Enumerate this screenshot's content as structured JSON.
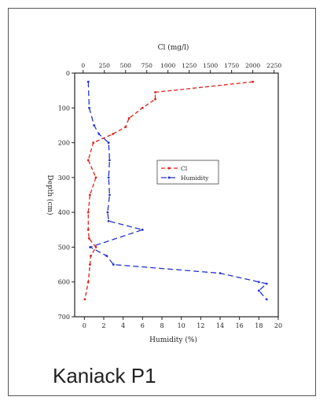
{
  "caption": "Kaniack P1",
  "chart_data": {
    "type": "line",
    "top_axis": {
      "label": "Cl (mg/l)",
      "min": -100,
      "max": 2300,
      "ticks": [
        0,
        250,
        500,
        750,
        1000,
        1250,
        1500,
        1750,
        2000,
        2250
      ]
    },
    "bottom_axis": {
      "label": "Humidity (%)",
      "min": -1,
      "max": 20,
      "ticks": [
        0,
        2,
        4,
        6,
        8,
        10,
        12,
        14,
        16,
        18,
        20
      ]
    },
    "y_axis": {
      "label": "Depth (cm)",
      "min": 0,
      "max": 700,
      "inverted": true,
      "ticks": [
        0,
        100,
        200,
        300,
        400,
        500,
        600,
        700
      ]
    },
    "series": [
      {
        "name": "Cl",
        "axis": "top",
        "color": "#e0201a",
        "dash": "5,3",
        "points": [
          [
            2000,
            25
          ],
          [
            850,
            55
          ],
          [
            850,
            75
          ],
          [
            700,
            100
          ],
          [
            540,
            130
          ],
          [
            500,
            155
          ],
          [
            350,
            175
          ],
          [
            120,
            200
          ],
          [
            60,
            250
          ],
          [
            150,
            300
          ],
          [
            80,
            350
          ],
          [
            60,
            400
          ],
          [
            60,
            450
          ],
          [
            70,
            475
          ],
          [
            150,
            500
          ],
          [
            90,
            525
          ],
          [
            80,
            550
          ],
          [
            60,
            600
          ],
          [
            20,
            650
          ]
        ]
      },
      {
        "name": "Humidity",
        "axis": "bottom",
        "color": "#2233cc",
        "dash": "7,4",
        "points": [
          [
            0.4,
            25
          ],
          [
            0.5,
            100
          ],
          [
            1.0,
            150
          ],
          [
            1.5,
            175
          ],
          [
            2.5,
            200
          ],
          [
            2.6,
            250
          ],
          [
            2.5,
            300
          ],
          [
            2.6,
            350
          ],
          [
            2.4,
            400
          ],
          [
            2.5,
            425
          ],
          [
            6.0,
            450
          ],
          [
            0.6,
            500
          ],
          [
            2.3,
            525
          ],
          [
            3.0,
            550
          ],
          [
            14.0,
            575
          ],
          [
            18.0,
            600
          ],
          [
            18.8,
            605
          ],
          [
            18.0,
            625
          ],
          [
            18.8,
            650
          ]
        ]
      }
    ],
    "legend": {
      "position": "center-right"
    }
  }
}
